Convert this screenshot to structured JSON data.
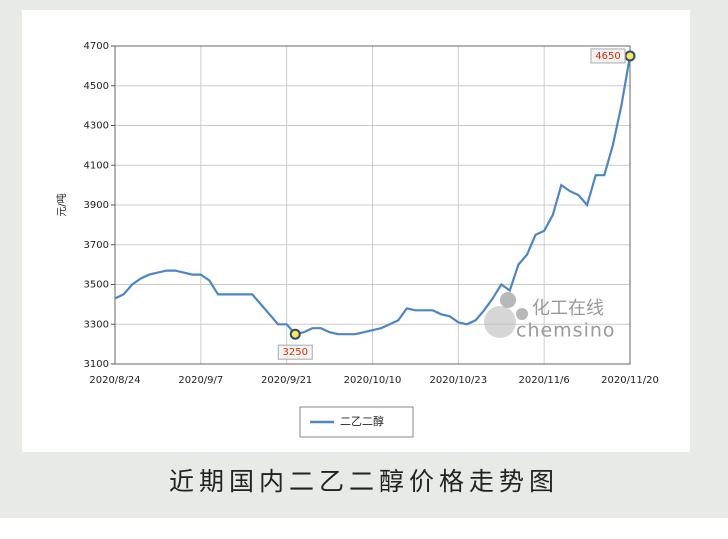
{
  "chart_data": {
    "type": "line",
    "caption": "近期国内二乙二醇价格走势图",
    "y_label": "元/吨",
    "watermark": [
      "化工在线",
      "chemsino"
    ],
    "categories": [
      "2020/8/24",
      null,
      null,
      null,
      null,
      null,
      null,
      null,
      null,
      null,
      "2020/9/7",
      null,
      null,
      null,
      null,
      null,
      null,
      null,
      null,
      null,
      "2020/9/21",
      null,
      null,
      null,
      null,
      null,
      null,
      null,
      null,
      null,
      "2020/10/10",
      null,
      null,
      null,
      null,
      null,
      null,
      null,
      null,
      null,
      "2020/10/23",
      null,
      null,
      null,
      null,
      null,
      null,
      null,
      null,
      null,
      "2020/11/6",
      null,
      null,
      null,
      null,
      null,
      null,
      null,
      null,
      null,
      "2020/11/20"
    ],
    "series": [
      {
        "name": "二乙二醇",
        "color": "#4a86c8",
        "values": [
          3430,
          3450,
          3500,
          3530,
          3550,
          3560,
          3570,
          3570,
          3560,
          3550,
          3550,
          3520,
          3450,
          3450,
          3450,
          3450,
          3450,
          3400,
          3350,
          3300,
          3300,
          3250,
          3260,
          3280,
          3280,
          3260,
          3250,
          3250,
          3250,
          3260,
          3270,
          3280,
          3300,
          3320,
          3380,
          3370,
          3370,
          3370,
          3350,
          3340,
          3310,
          3300,
          3320,
          3370,
          3430,
          3500,
          3470,
          3600,
          3650,
          3750,
          3770,
          3850,
          4000,
          3970,
          3950,
          3900,
          4050,
          4050,
          4200,
          4400,
          4650
        ],
        "value_labels": [
          null,
          null,
          null,
          null,
          null,
          null,
          null,
          null,
          null,
          null,
          null,
          null,
          null,
          null,
          null,
          null,
          null,
          null,
          null,
          null,
          null,
          "3250",
          null,
          null,
          null,
          null,
          null,
          null,
          null,
          null,
          null,
          null,
          null,
          null,
          null,
          null,
          null,
          null,
          null,
          null,
          null,
          null,
          null,
          null,
          null,
          null,
          null,
          null,
          null,
          null,
          null,
          null,
          null,
          null,
          null,
          null,
          null,
          null,
          null,
          null,
          "4650"
        ]
      }
    ],
    "ylim": [
      3100,
      4700
    ],
    "yticks": [
      3100,
      3300,
      3500,
      3700,
      3900,
      4100,
      4300,
      4500,
      4700
    ],
    "grid": true
  }
}
